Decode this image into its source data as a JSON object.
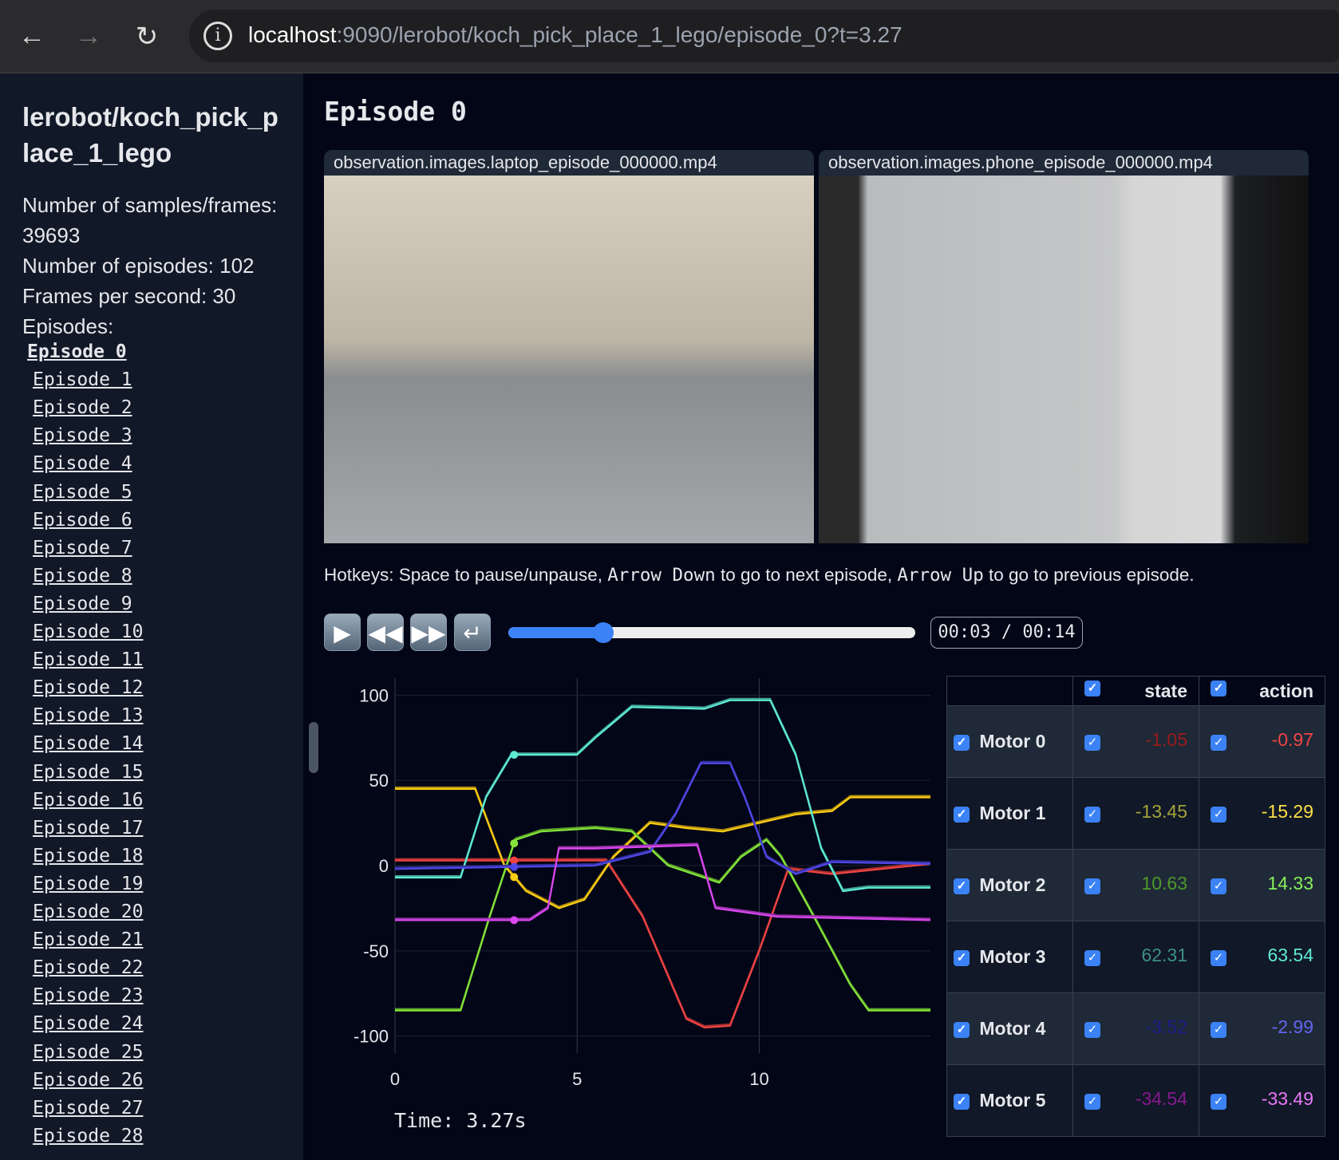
{
  "browser": {
    "url_host": "localhost",
    "url_rest": ":9090/lerobot/koch_pick_place_1_lego/episode_0?t=3.27",
    "back_icon": "arrow-left",
    "forward_icon": "arrow-right",
    "reload_icon": "reload",
    "info_icon": "info"
  },
  "sidebar": {
    "dataset_title": "lerobot/koch_pick_place_1_lego",
    "stats": [
      "Number of samples/frames: 39693",
      "Number of episodes: 102",
      "Frames per second: 30",
      "Episodes:"
    ],
    "episodes": [
      "Episode 0",
      "Episode 1",
      "Episode 2",
      "Episode 3",
      "Episode 4",
      "Episode 5",
      "Episode 6",
      "Episode 7",
      "Episode 8",
      "Episode 9",
      "Episode 10",
      "Episode 11",
      "Episode 12",
      "Episode 13",
      "Episode 14",
      "Episode 15",
      "Episode 16",
      "Episode 17",
      "Episode 18",
      "Episode 19",
      "Episode 20",
      "Episode 21",
      "Episode 22",
      "Episode 23",
      "Episode 24",
      "Episode 25",
      "Episode 26",
      "Episode 27",
      "Episode 28"
    ],
    "active_episode": 0
  },
  "main": {
    "title": "Episode 0",
    "videos": [
      {
        "label": "observation.images.laptop_episode_000000.mp4"
      },
      {
        "label": "observation.images.phone_episode_000000.mp4"
      }
    ],
    "hotkeys": {
      "pre": "Hotkeys: Space to pause/unpause, ",
      "k1": "Arrow Down",
      "mid": " to go to next episode, ",
      "k2": "Arrow Up",
      "post": " to go to previous episode."
    },
    "player": {
      "play_icon": "play",
      "rewind_icon": "rewind",
      "forward_icon": "fast-forward",
      "loop_icon": "loop",
      "progress": 0.234,
      "time_display": "00:03 / 00:14"
    },
    "time_label": "Time: 3.27s"
  },
  "chart_data": {
    "type": "line",
    "xlim": [
      0,
      14.7
    ],
    "ylim": [
      -110,
      110
    ],
    "xticks": [
      0,
      5,
      10
    ],
    "yticks": [
      100,
      50,
      0,
      -50,
      -100
    ],
    "grid": true,
    "cursor_t": 3.27,
    "series": [
      {
        "motor": "Motor 0",
        "color": "#ef4444",
        "points": [
          [
            0,
            3
          ],
          [
            5.8,
            3
          ],
          [
            6.8,
            -30
          ],
          [
            8,
            -90
          ],
          [
            8.5,
            -95
          ],
          [
            9.2,
            -94
          ],
          [
            10,
            -50
          ],
          [
            10.8,
            -2
          ],
          [
            12,
            -5
          ],
          [
            14.7,
            1
          ]
        ]
      },
      {
        "motor": "Motor 1",
        "color": "#facc15",
        "points": [
          [
            0,
            45
          ],
          [
            2.2,
            45
          ],
          [
            3,
            0
          ],
          [
            3.6,
            -15
          ],
          [
            4.5,
            -25
          ],
          [
            5.2,
            -20
          ],
          [
            6,
            5
          ],
          [
            7,
            25
          ],
          [
            8,
            22
          ],
          [
            9,
            20
          ],
          [
            10,
            25
          ],
          [
            11,
            30
          ],
          [
            12,
            32
          ],
          [
            12.5,
            40
          ],
          [
            14.7,
            40
          ]
        ]
      },
      {
        "motor": "Motor 2",
        "color": "#84e33a",
        "points": [
          [
            0,
            -85
          ],
          [
            1.8,
            -85
          ],
          [
            2.6,
            -30
          ],
          [
            3.3,
            15
          ],
          [
            4,
            20
          ],
          [
            5.5,
            22
          ],
          [
            6.5,
            20
          ],
          [
            7.5,
            0
          ],
          [
            8.2,
            -5
          ],
          [
            8.9,
            -10
          ],
          [
            9.5,
            5
          ],
          [
            10.2,
            15
          ],
          [
            10.6,
            5
          ],
          [
            11.5,
            -30
          ],
          [
            12.5,
            -70
          ],
          [
            13,
            -85
          ],
          [
            14.7,
            -85
          ]
        ]
      },
      {
        "motor": "Motor 3",
        "color": "#5eead4",
        "points": [
          [
            0,
            -7
          ],
          [
            1.8,
            -7
          ],
          [
            2.5,
            40
          ],
          [
            3.2,
            65
          ],
          [
            5,
            65
          ],
          [
            5.5,
            75
          ],
          [
            6.5,
            93
          ],
          [
            8.5,
            92
          ],
          [
            9.2,
            97
          ],
          [
            10.3,
            97
          ],
          [
            11,
            65
          ],
          [
            11.7,
            10
          ],
          [
            12.3,
            -15
          ],
          [
            13,
            -13
          ],
          [
            14.7,
            -13
          ]
        ]
      },
      {
        "motor": "Motor 4",
        "color": "#4f46e5",
        "points": [
          [
            0,
            -2
          ],
          [
            5.5,
            0
          ],
          [
            7,
            8
          ],
          [
            7.7,
            30
          ],
          [
            8.4,
            60
          ],
          [
            9.2,
            60
          ],
          [
            9.6,
            40
          ],
          [
            10.2,
            5
          ],
          [
            11,
            -5
          ],
          [
            12,
            2
          ],
          [
            14.7,
            1
          ]
        ]
      },
      {
        "motor": "Motor 5",
        "color": "#d946ef",
        "points": [
          [
            0,
            -32
          ],
          [
            3.7,
            -32
          ],
          [
            4.2,
            -25
          ],
          [
            4.5,
            10
          ],
          [
            5.5,
            10
          ],
          [
            8.3,
            12
          ],
          [
            8.8,
            -25
          ],
          [
            10.5,
            -30
          ],
          [
            14.7,
            -32
          ]
        ]
      }
    ]
  },
  "table": {
    "headers": {
      "state": "state",
      "action": "action"
    },
    "rows": [
      {
        "name": "Motor 0",
        "state": "-1.05",
        "action": "-0.97",
        "state_color": "#991b1b",
        "action_color": "#ef4444"
      },
      {
        "name": "Motor 1",
        "state": "-13.45",
        "action": "-15.29",
        "state_color": "#a3a33a",
        "action_color": "#fde047"
      },
      {
        "name": "Motor 2",
        "state": "10.63",
        "action": "14.33",
        "state_color": "#4d9a2a",
        "action_color": "#86ef5a"
      },
      {
        "name": "Motor 3",
        "state": "62.31",
        "action": "63.54",
        "state_color": "#3c8f86",
        "action_color": "#5eead4"
      },
      {
        "name": "Motor 4",
        "state": "-3.52",
        "action": "-2.99",
        "state_color": "#1e1b8a",
        "action_color": "#6366f1"
      },
      {
        "name": "Motor 5",
        "state": "-34.54",
        "action": "-33.49",
        "state_color": "#86198f",
        "action_color": "#e879f9"
      }
    ]
  }
}
